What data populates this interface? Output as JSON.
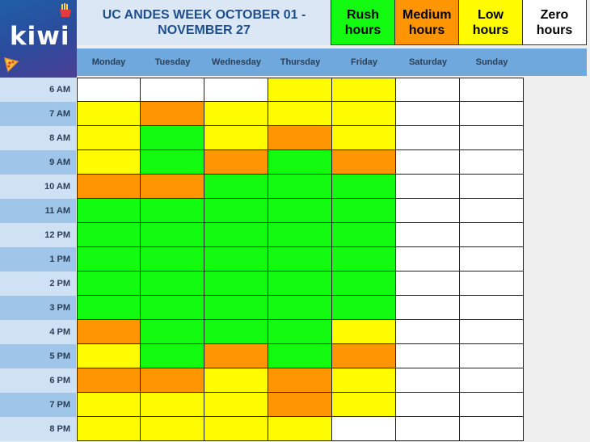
{
  "logo": {
    "text": "kiwi"
  },
  "title": "UC ANDES WEEK OCTOBER 01 - NOVEMBER 27",
  "legend": [
    {
      "label": "Rush hours",
      "color": "#13fb10",
      "key": "R"
    },
    {
      "label": "Medium hours",
      "color": "#ff9500",
      "key": "M"
    },
    {
      "label": "Low hours",
      "color": "#fffb00",
      "key": "L"
    },
    {
      "label": "Zero hours",
      "color": "#ffffff",
      "key": "Z"
    }
  ],
  "days": [
    "Monday",
    "Tuesday",
    "Wednesday",
    "Thursday",
    "Friday",
    "Saturday",
    "Sunday"
  ],
  "times": [
    "6 AM",
    "7 AM",
    "8 AM",
    "9 AM",
    "10 AM",
    "11 AM",
    "12 PM",
    "1 PM",
    "2 PM",
    "3 PM",
    "4 PM",
    "5 PM",
    "6 PM",
    "7 PM",
    "8 PM"
  ],
  "schedule": [
    [
      "Z",
      "Z",
      "Z",
      "L",
      "L",
      "Z",
      "Z"
    ],
    [
      "L",
      "M",
      "L",
      "L",
      "L",
      "Z",
      "Z"
    ],
    [
      "L",
      "R",
      "L",
      "M",
      "L",
      "Z",
      "Z"
    ],
    [
      "L",
      "R",
      "M",
      "R",
      "M",
      "Z",
      "Z"
    ],
    [
      "M",
      "M",
      "R",
      "R",
      "R",
      "Z",
      "Z"
    ],
    [
      "R",
      "R",
      "R",
      "R",
      "R",
      "Z",
      "Z"
    ],
    [
      "R",
      "R",
      "R",
      "R",
      "R",
      "Z",
      "Z"
    ],
    [
      "R",
      "R",
      "R",
      "R",
      "R",
      "Z",
      "Z"
    ],
    [
      "R",
      "R",
      "R",
      "R",
      "R",
      "Z",
      "Z"
    ],
    [
      "R",
      "R",
      "R",
      "R",
      "R",
      "Z",
      "Z"
    ],
    [
      "M",
      "R",
      "R",
      "R",
      "L",
      "Z",
      "Z"
    ],
    [
      "L",
      "R",
      "M",
      "R",
      "M",
      "Z",
      "Z"
    ],
    [
      "M",
      "M",
      "L",
      "M",
      "L",
      "Z",
      "Z"
    ],
    [
      "L",
      "L",
      "L",
      "M",
      "L",
      "Z",
      "Z"
    ],
    [
      "L",
      "L",
      "L",
      "L",
      "Z",
      "Z",
      "Z"
    ]
  ],
  "colors": {
    "header_blue": "#6fa8dc",
    "time_dark": "#9fc5e8",
    "time_light": "#cfe2f3"
  }
}
